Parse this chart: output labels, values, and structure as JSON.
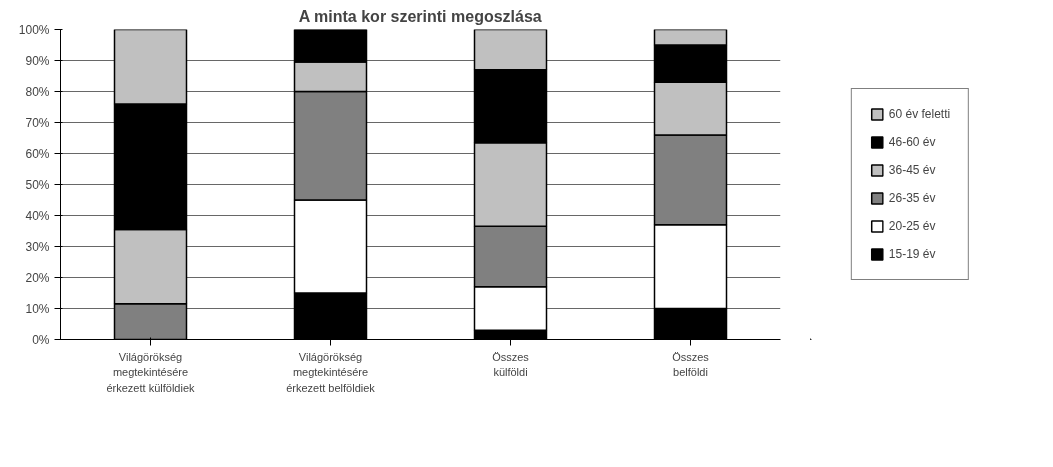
{
  "chart_data": {
    "type": "bar",
    "title": "A minta kor szerinti megoszlása",
    "stacked": true,
    "categories": [
      "Világörökség\nmegtekintésére\nérkezett külföldiek",
      "Világörökség\nmegtekintésére\nérkezett belföldiek",
      "Összes\nkülföldi",
      "Összes\nbelföldi"
    ],
    "series": [
      {
        "name": "15-19 év",
        "color": "#000000",
        "values": [
          0,
          15,
          3,
          10
        ]
      },
      {
        "name": "20-25 év",
        "color": "#ffffff",
        "values": [
          0,
          30,
          14,
          27
        ]
      },
      {
        "name": "26-35 év",
        "color": "#808080",
        "values": [
          11.5,
          35,
          19.5,
          29
        ]
      },
      {
        "name": "36-45 év",
        "color": "#c0c0c0",
        "values": [
          24,
          9.5,
          27,
          17
        ]
      },
      {
        "name": "46-60 év",
        "color": "#000000",
        "values": [
          40.5,
          10.5,
          23.5,
          12
        ]
      },
      {
        "name": "60 év feletti",
        "color": "#c0c0c0",
        "values": [
          24,
          0,
          13,
          5
        ]
      }
    ],
    "ylim": [
      0,
      100
    ],
    "yticks": [
      {
        "value": 0,
        "label": "0%"
      },
      {
        "value": 10,
        "label": "10%"
      },
      {
        "value": 20,
        "label": "20%"
      },
      {
        "value": 30,
        "label": "30%"
      },
      {
        "value": 40,
        "label": "40%"
      },
      {
        "value": 50,
        "label": "50%"
      },
      {
        "value": 60,
        "label": "60%"
      },
      {
        "value": 70,
        "label": "70%"
      },
      {
        "value": 80,
        "label": "80%"
      },
      {
        "value": 90,
        "label": "90%"
      },
      {
        "value": 100,
        "label": "100%"
      }
    ],
    "grid": "y",
    "legend": "right"
  }
}
